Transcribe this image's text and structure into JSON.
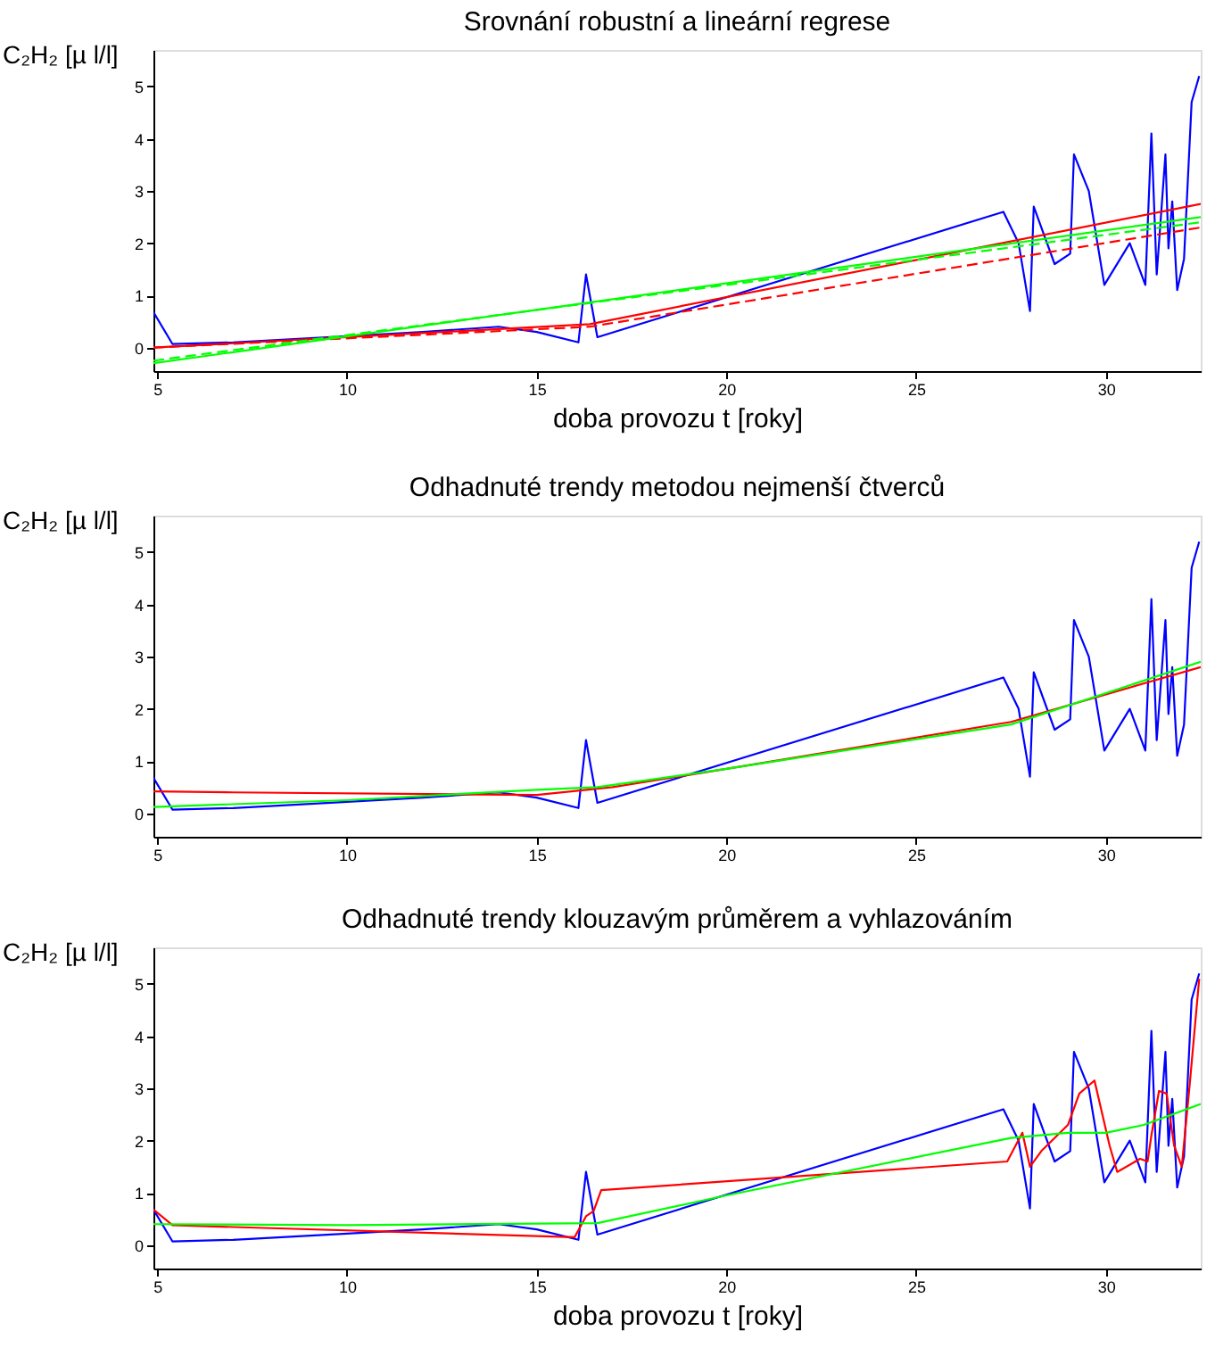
{
  "chart_data": [
    {
      "type": "line",
      "title": "Srovnání robustní a lineární regrese",
      "xlabel": "doba provozu t [roky]",
      "ylabel": "C₂H₂ [µ l/l]",
      "xlim": [
        4.9,
        32.5
      ],
      "ylim": [
        -0.45,
        5.7
      ],
      "xticks": [
        5,
        10,
        15,
        20,
        25,
        30
      ],
      "yticks": [
        0,
        1,
        2,
        3,
        4,
        5
      ],
      "grid": false,
      "series": [
        {
          "color": "#0000ff",
          "x": [
            4.9,
            5.4,
            7,
            10,
            12,
            14,
            15,
            16.1,
            16.3,
            16.6,
            27.3,
            27.7,
            28.0,
            28.1,
            28.65,
            29.06,
            29.16,
            29.55,
            29.96,
            30.63,
            31.04,
            31.2,
            31.34,
            31.57,
            31.65,
            31.75,
            31.88,
            32.06,
            32.26,
            32.46
          ],
          "values": [
            0.68,
            0.07,
            0.1,
            0.22,
            0.3,
            0.4,
            0.3,
            0.1,
            1.4,
            0.2,
            2.6,
            2.0,
            0.7,
            2.7,
            1.6,
            1.8,
            3.7,
            3.0,
            1.2,
            2.0,
            1.2,
            4.1,
            1.4,
            3.7,
            1.9,
            2.8,
            1.1,
            1.7,
            4.7,
            5.2
          ]
        },
        {
          "color": "#ff0000",
          "line_style": "solid",
          "x": [
            4.9,
            16.4,
            32.5
          ],
          "values": [
            0.0,
            0.45,
            2.75
          ]
        },
        {
          "color": "#ff0000",
          "line_style": "dashed",
          "x": [
            4.9,
            16.4,
            32.5
          ],
          "values": [
            0.0,
            0.4,
            2.3
          ]
        },
        {
          "color": "#00ff00",
          "line_style": "solid",
          "x": [
            4.9,
            32.5
          ],
          "values": [
            -0.3,
            2.5
          ]
        },
        {
          "color": "#00ff00",
          "line_style": "dashed",
          "x": [
            4.9,
            32.5
          ],
          "values": [
            -0.25,
            2.4
          ]
        }
      ]
    },
    {
      "type": "line",
      "title": "Odhadnuté trendy metodou nejmenší čtverců",
      "ylabel": "C₂H₂ [µ l/l]",
      "xlim": [
        4.9,
        32.5
      ],
      "ylim": [
        -0.45,
        5.7
      ],
      "xticks": [
        5,
        10,
        15,
        20,
        25,
        30
      ],
      "yticks": [
        0,
        1,
        2,
        3,
        4,
        5
      ],
      "grid": false,
      "series": [
        {
          "color": "#0000ff",
          "x": [
            4.9,
            5.4,
            7,
            10,
            12,
            14,
            15,
            16.1,
            16.3,
            16.6,
            27.3,
            27.7,
            28.0,
            28.1,
            28.65,
            29.06,
            29.16,
            29.55,
            29.96,
            30.63,
            31.04,
            31.2,
            31.34,
            31.57,
            31.65,
            31.75,
            31.88,
            32.06,
            32.26,
            32.46
          ],
          "values": [
            0.68,
            0.07,
            0.1,
            0.22,
            0.3,
            0.4,
            0.3,
            0.1,
            1.4,
            0.2,
            2.6,
            2.0,
            0.7,
            2.7,
            1.6,
            1.8,
            3.7,
            3.0,
            1.2,
            2.0,
            1.2,
            4.1,
            1.4,
            3.7,
            1.9,
            2.8,
            1.1,
            1.7,
            4.7,
            5.2
          ]
        },
        {
          "color": "#ff0000",
          "x": [
            4.9,
            7,
            15,
            17,
            20,
            27.5,
            32.5
          ],
          "values": [
            0.42,
            0.4,
            0.35,
            0.5,
            0.85,
            1.75,
            2.8
          ]
        },
        {
          "color": "#00ff00",
          "x": [
            4.9,
            10,
            15,
            16.6,
            20,
            27.5,
            32.5
          ],
          "values": [
            0.12,
            0.25,
            0.45,
            0.5,
            0.85,
            1.7,
            2.9
          ]
        }
      ]
    },
    {
      "type": "line",
      "title": "Odhadnuté trendy klouzavým průměrem a vyhlazováním",
      "xlabel": "doba provozu t [roky]",
      "ylabel": "C₂H₂ [µ l/l]",
      "xlim": [
        4.9,
        32.5
      ],
      "ylim": [
        -0.45,
        5.7
      ],
      "xticks": [
        5,
        10,
        15,
        20,
        25,
        30
      ],
      "yticks": [
        0,
        1,
        2,
        3,
        4,
        5
      ],
      "grid": false,
      "series": [
        {
          "color": "#0000ff",
          "x": [
            4.9,
            5.4,
            7,
            10,
            12,
            14,
            15,
            16.1,
            16.3,
            16.6,
            27.3,
            27.7,
            28.0,
            28.1,
            28.65,
            29.06,
            29.16,
            29.55,
            29.96,
            30.63,
            31.04,
            31.2,
            31.34,
            31.57,
            31.65,
            31.75,
            31.88,
            32.06,
            32.26,
            32.46
          ],
          "values": [
            0.68,
            0.07,
            0.1,
            0.22,
            0.3,
            0.4,
            0.3,
            0.1,
            1.4,
            0.2,
            2.6,
            2.0,
            0.7,
            2.7,
            1.6,
            1.8,
            3.7,
            3.0,
            1.2,
            2.0,
            1.2,
            4.1,
            1.4,
            3.7,
            1.9,
            2.8,
            1.1,
            1.7,
            4.7,
            5.2
          ]
        },
        {
          "color": "#ff0000",
          "x": [
            4.9,
            5.4,
            16.0,
            16.3,
            16.5,
            16.7,
            27.4,
            27.8,
            28.0,
            28.3,
            29.0,
            29.3,
            29.7,
            30.1,
            30.3,
            30.9,
            31.1,
            31.2,
            31.4,
            31.6,
            31.8,
            32.0,
            32.2,
            32.46
          ],
          "values": [
            0.68,
            0.38,
            0.15,
            0.55,
            0.65,
            1.05,
            1.6,
            2.15,
            1.5,
            1.8,
            2.3,
            2.9,
            3.15,
            1.9,
            1.4,
            1.65,
            1.6,
            2.1,
            2.95,
            2.9,
            1.9,
            1.5,
            3.0,
            5.1
          ]
        },
        {
          "color": "#00ff00",
          "x": [
            4.9,
            10,
            16.6,
            20,
            27.5,
            29,
            30,
            31,
            32.5
          ],
          "values": [
            0.4,
            0.38,
            0.42,
            0.95,
            2.05,
            2.15,
            2.15,
            2.3,
            2.7
          ]
        }
      ]
    }
  ]
}
